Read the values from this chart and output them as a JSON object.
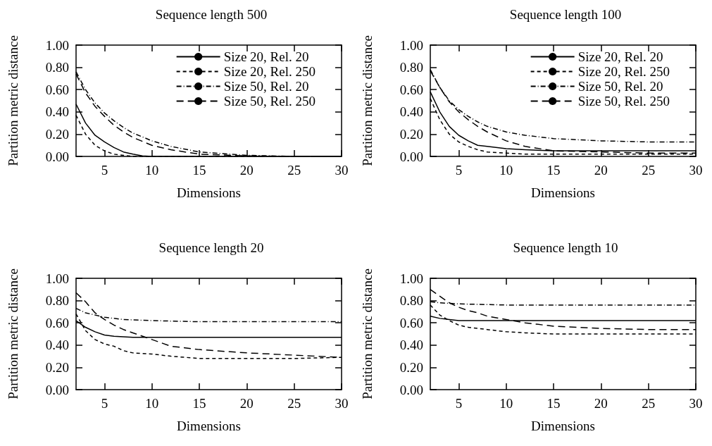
{
  "chart_data": [
    {
      "type": "line",
      "title": "Sequence length 500",
      "xlabel": "Dimensions",
      "ylabel": "Partition metric distance",
      "xlim": [
        2,
        30
      ],
      "xticks": [
        5,
        10,
        15,
        20,
        25,
        30
      ],
      "ylim": [
        0,
        1
      ],
      "yticks": [
        {
          "value": 0,
          "label": "0.00"
        },
        {
          "value": 0.2,
          "label": "0.20"
        },
        {
          "value": 0.4,
          "label": "0.40"
        },
        {
          "value": 0.6,
          "label": "0.60"
        },
        {
          "value": 0.8,
          "label": "0.80"
        },
        {
          "value": 1,
          "label": "1.00"
        }
      ],
      "grid": false,
      "legend": "top right",
      "series": [
        {
          "name": "Size 20, Rel. 20",
          "color": "#000000",
          "line_style": "solid",
          "x": [
            2,
            3,
            4,
            5,
            6,
            7,
            8,
            9,
            10,
            12,
            15,
            20,
            25,
            30
          ],
          "values": [
            0.47,
            0.3,
            0.19,
            0.13,
            0.08,
            0.04,
            0.02,
            0.005,
            0,
            0,
            0,
            0,
            0,
            0
          ]
        },
        {
          "name": "Size 20, Rel. 250",
          "color": "#000000",
          "line_style": "dashed",
          "x": [
            2,
            3,
            4,
            5,
            6,
            7,
            8,
            10,
            12,
            15,
            20,
            25,
            30
          ],
          "values": [
            0.37,
            0.2,
            0.1,
            0.05,
            0.02,
            0.01,
            0,
            0,
            0,
            0,
            0,
            0,
            0
          ]
        },
        {
          "name": "Size 50, Rel. 20",
          "color": "#000000",
          "line_style": "dashdot",
          "x": [
            2,
            3,
            4,
            5,
            6,
            7,
            8,
            10,
            12,
            15,
            20,
            25,
            30
          ],
          "values": [
            0.76,
            0.6,
            0.48,
            0.39,
            0.32,
            0.26,
            0.21,
            0.14,
            0.09,
            0.04,
            0.01,
            0,
            0
          ]
        },
        {
          "name": "Size 50, Rel. 250",
          "color": "#000000",
          "line_style": "longdash",
          "x": [
            2,
            3,
            4,
            5,
            6,
            7,
            8,
            10,
            12,
            15,
            20,
            25,
            30
          ],
          "values": [
            0.74,
            0.57,
            0.45,
            0.36,
            0.28,
            0.22,
            0.17,
            0.1,
            0.06,
            0.02,
            0.005,
            0,
            0
          ]
        }
      ]
    },
    {
      "type": "line",
      "title": "Sequence length 100",
      "xlabel": "Dimensions",
      "ylabel": "Partition metric distance",
      "xlim": [
        2,
        30
      ],
      "xticks": [
        5,
        10,
        15,
        20,
        25,
        30
      ],
      "ylim": [
        0,
        1
      ],
      "yticks": [
        {
          "value": 0,
          "label": "0.00"
        },
        {
          "value": 0.2,
          "label": "0.20"
        },
        {
          "value": 0.4,
          "label": "0.40"
        },
        {
          "value": 0.6,
          "label": "0.60"
        },
        {
          "value": 0.8,
          "label": "0.80"
        },
        {
          "value": 1,
          "label": "1.00"
        }
      ],
      "grid": false,
      "legend": "top right",
      "series": [
        {
          "name": "Size 20, Rel. 20",
          "color": "#000000",
          "line_style": "solid",
          "x": [
            2,
            3,
            4,
            5,
            6,
            7,
            8,
            10,
            12,
            15,
            20,
            25,
            30
          ],
          "values": [
            0.58,
            0.4,
            0.27,
            0.19,
            0.14,
            0.1,
            0.09,
            0.07,
            0.06,
            0.05,
            0.05,
            0.05,
            0.05
          ]
        },
        {
          "name": "Size 20, Rel. 250",
          "color": "#000000",
          "line_style": "dashed",
          "x": [
            2,
            3,
            4,
            5,
            6,
            7,
            8,
            10,
            12,
            15,
            20,
            25,
            30
          ],
          "values": [
            0.52,
            0.33,
            0.2,
            0.13,
            0.09,
            0.06,
            0.04,
            0.03,
            0.02,
            0.02,
            0.02,
            0.02,
            0.02
          ]
        },
        {
          "name": "Size 50, Rel. 20",
          "color": "#000000",
          "line_style": "dashdot",
          "x": [
            2,
            3,
            4,
            5,
            6,
            7,
            8,
            10,
            12,
            15,
            20,
            25,
            30
          ],
          "values": [
            0.78,
            0.62,
            0.5,
            0.42,
            0.36,
            0.31,
            0.27,
            0.22,
            0.19,
            0.16,
            0.14,
            0.13,
            0.13
          ]
        },
        {
          "name": "Size 50, Rel. 250",
          "color": "#000000",
          "line_style": "longdash",
          "x": [
            2,
            3,
            4,
            5,
            6,
            7,
            8,
            10,
            12,
            15,
            20,
            25,
            30
          ],
          "values": [
            0.77,
            0.62,
            0.49,
            0.4,
            0.33,
            0.27,
            0.22,
            0.14,
            0.09,
            0.05,
            0.04,
            0.03,
            0.03
          ]
        }
      ]
    },
    {
      "type": "line",
      "title": "Sequence length 20",
      "xlabel": "Dimensions",
      "ylabel": "Partition metric distance",
      "xlim": [
        2,
        30
      ],
      "xticks": [
        5,
        10,
        15,
        20,
        25,
        30
      ],
      "ylim": [
        0,
        1
      ],
      "yticks": [
        {
          "value": 0,
          "label": "0.00"
        },
        {
          "value": 0.2,
          "label": "0.20"
        },
        {
          "value": 0.4,
          "label": "0.40"
        },
        {
          "value": 0.6,
          "label": "0.60"
        },
        {
          "value": 0.8,
          "label": "0.80"
        },
        {
          "value": 1,
          "label": "1.00"
        }
      ],
      "grid": false,
      "series": [
        {
          "color": "#000000",
          "line_style": "solid",
          "x": [
            2,
            3,
            4,
            5,
            6,
            8,
            10,
            15,
            20,
            25,
            30
          ],
          "values": [
            0.62,
            0.56,
            0.52,
            0.49,
            0.48,
            0.47,
            0.47,
            0.47,
            0.47,
            0.47,
            0.47
          ]
        },
        {
          "color": "#000000",
          "line_style": "dashed",
          "x": [
            2,
            3,
            4,
            5,
            6,
            7,
            8,
            10,
            12,
            15,
            20,
            25,
            30
          ],
          "values": [
            0.68,
            0.53,
            0.45,
            0.41,
            0.39,
            0.35,
            0.33,
            0.32,
            0.3,
            0.28,
            0.28,
            0.28,
            0.29
          ]
        },
        {
          "color": "#000000",
          "line_style": "dashdot",
          "x": [
            2,
            3,
            4,
            5,
            7,
            10,
            15,
            20,
            25,
            30
          ],
          "values": [
            0.73,
            0.69,
            0.67,
            0.65,
            0.63,
            0.62,
            0.61,
            0.61,
            0.61,
            0.61
          ]
        },
        {
          "color": "#000000",
          "line_style": "longdash",
          "x": [
            2,
            3,
            4,
            5,
            6,
            7,
            8,
            10,
            12,
            15,
            20,
            25,
            30
          ],
          "values": [
            0.87,
            0.79,
            0.69,
            0.63,
            0.58,
            0.54,
            0.51,
            0.45,
            0.39,
            0.36,
            0.33,
            0.31,
            0.29
          ]
        }
      ]
    },
    {
      "type": "line",
      "title": "Sequence length 10",
      "xlabel": "Dimensions",
      "ylabel": "Partition metric distance",
      "xlim": [
        2,
        30
      ],
      "xticks": [
        5,
        10,
        15,
        20,
        25,
        30
      ],
      "ylim": [
        0,
        1
      ],
      "yticks": [
        {
          "value": 0,
          "label": "0.00"
        },
        {
          "value": 0.2,
          "label": "0.20"
        },
        {
          "value": 0.4,
          "label": "0.40"
        },
        {
          "value": 0.6,
          "label": "0.60"
        },
        {
          "value": 0.8,
          "label": "0.80"
        },
        {
          "value": 1,
          "label": "1.00"
        }
      ],
      "grid": false,
      "series": [
        {
          "color": "#000000",
          "line_style": "solid",
          "x": [
            2,
            3,
            4,
            5,
            10,
            15,
            20,
            25,
            30
          ],
          "values": [
            0.66,
            0.64,
            0.63,
            0.62,
            0.62,
            0.62,
            0.62,
            0.62,
            0.62
          ]
        },
        {
          "color": "#000000",
          "line_style": "dashed",
          "x": [
            2,
            3,
            4,
            5,
            6,
            8,
            10,
            12,
            15,
            20,
            25,
            30
          ],
          "values": [
            0.76,
            0.67,
            0.62,
            0.58,
            0.56,
            0.54,
            0.52,
            0.51,
            0.5,
            0.5,
            0.5,
            0.5
          ]
        },
        {
          "color": "#000000",
          "line_style": "dashdot",
          "x": [
            2,
            3,
            5,
            10,
            15,
            20,
            25,
            30
          ],
          "values": [
            0.79,
            0.78,
            0.77,
            0.76,
            0.76,
            0.76,
            0.76,
            0.76
          ]
        },
        {
          "color": "#000000",
          "line_style": "longdash",
          "x": [
            2,
            3,
            4,
            5,
            6,
            7,
            8,
            10,
            12,
            15,
            20,
            25,
            30
          ],
          "values": [
            0.9,
            0.84,
            0.78,
            0.74,
            0.71,
            0.69,
            0.66,
            0.63,
            0.6,
            0.57,
            0.55,
            0.54,
            0.54
          ]
        }
      ]
    }
  ]
}
